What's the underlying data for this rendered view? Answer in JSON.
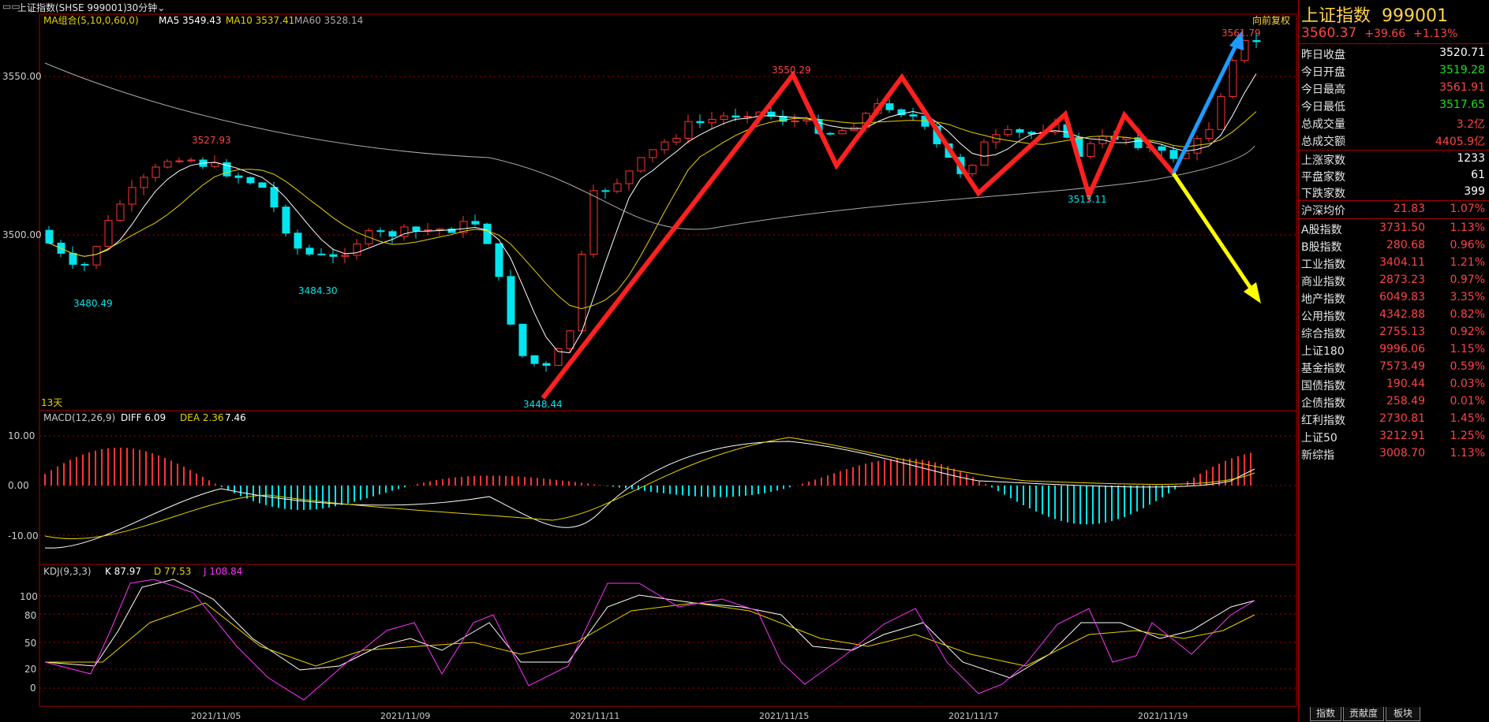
{
  "header": {
    "icon": "window-toggle-icon",
    "title": "上证指数(SHSE 999001)",
    "period": "30分钟",
    "period_icon": "chevron-down-icon"
  },
  "main_panel": {
    "ma_title": "MA组合(5,10,0,60,0)",
    "ma5": "MA5 3549.43",
    "ma10": "MA10 3537.41",
    "ma60": "MA60 3528.14",
    "restore_btn": "向前复权",
    "days_label": "13天",
    "y_ticks": [
      "3550.00",
      "3500.00"
    ],
    "annotations": [
      "3527.93",
      "3550.29",
      "3561.79",
      "3480.49",
      "3484.30",
      "3448.44",
      "3513.11"
    ]
  },
  "macd_panel": {
    "title": "MACD(12,26,9)",
    "diff": "DIFF 6.09",
    "dea": "DEA 2.36",
    "macd": "7.46",
    "y_ticks": [
      "10.00",
      "0.00",
      "-10.00"
    ]
  },
  "kdj_panel": {
    "title": "KDJ(9,3,3)",
    "k": "K 87.97",
    "d": "D 77.53",
    "j": "J 108.84",
    "y_ticks": [
      "100",
      "80",
      "50",
      "20",
      "0"
    ]
  },
  "x_axis": [
    "2021/11/05",
    "2021/11/09",
    "2021/11/11",
    "2021/11/15",
    "2021/11/17",
    "2021/11/19"
  ],
  "colors": {
    "up": "#ff3333",
    "down": "#00e5ee",
    "ma5": "#ffffff",
    "ma10": "#e6d200",
    "ma60": "#aaaaaa",
    "arrow_red": "#ff2020",
    "arrow_blue": "#1e9bff",
    "arrow_yellow": "#ffff00"
  },
  "right_panel": {
    "name": "上证指数",
    "code": "999001",
    "price": "3560.37",
    "change": "+39.66",
    "pct": "+1.13%",
    "stats": [
      {
        "label": "昨日收盘",
        "value": "3520.71",
        "color": "white"
      },
      {
        "label": "今日开盘",
        "value": "3519.28",
        "color": "green"
      },
      {
        "label": "今日最高",
        "value": "3561.91",
        "color": "red"
      },
      {
        "label": "今日最低",
        "value": "3517.65",
        "color": "green"
      },
      {
        "label": "总成交量",
        "value": "3.2亿",
        "color": "red"
      },
      {
        "label": "总成交额",
        "value": "4405.9亿",
        "color": "red"
      }
    ],
    "breadth": [
      {
        "label": "上涨家数",
        "value": "1233"
      },
      {
        "label": "平盘家数",
        "value": "61"
      },
      {
        "label": "下跌家数",
        "value": "399"
      }
    ],
    "avg": {
      "label": "沪深均价",
      "value": "21.83",
      "pct": "1.07%"
    },
    "indices": [
      {
        "label": "A股指数",
        "value": "3731.50",
        "pct": "1.13%"
      },
      {
        "label": "B股指数",
        "value": "280.68",
        "pct": "0.96%"
      },
      {
        "label": "工业指数",
        "value": "3404.11",
        "pct": "1.21%"
      },
      {
        "label": "商业指数",
        "value": "2873.23",
        "pct": "0.97%"
      },
      {
        "label": "地产指数",
        "value": "6049.83",
        "pct": "3.35%"
      },
      {
        "label": "公用指数",
        "value": "4342.88",
        "pct": "0.82%"
      },
      {
        "label": "综合指数",
        "value": "2755.13",
        "pct": "0.92%"
      },
      {
        "label": "上证180",
        "value": "9996.06",
        "pct": "1.15%"
      },
      {
        "label": "基金指数",
        "value": "7573.49",
        "pct": "0.59%"
      },
      {
        "label": "国债指数",
        "value": "190.44",
        "pct": "0.03%"
      },
      {
        "label": "企债指数",
        "value": "258.49",
        "pct": "0.01%"
      },
      {
        "label": "红利指数",
        "value": "2730.81",
        "pct": "1.45%"
      },
      {
        "label": "上证50",
        "value": "3212.91",
        "pct": "1.25%"
      },
      {
        "label": "新综指",
        "value": "3008.70",
        "pct": "1.13%"
      }
    ],
    "tabs": [
      "指数",
      "贡献度",
      "板块"
    ]
  }
}
